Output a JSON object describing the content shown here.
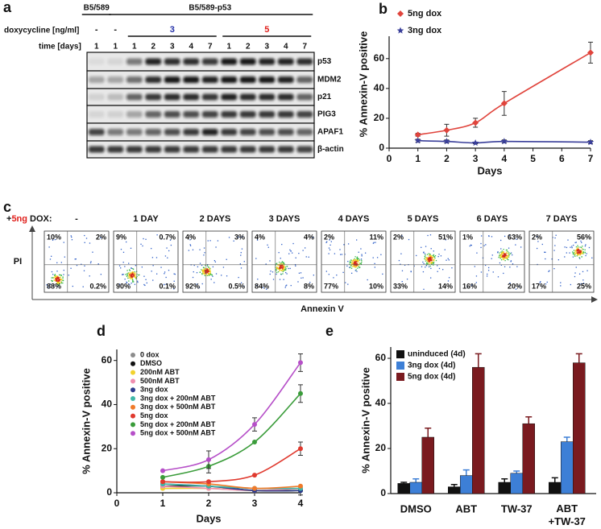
{
  "panel_a": {
    "label": "a",
    "group_labels": [
      "B5/589",
      "B5/589-p53"
    ],
    "dox_label": "doxycycline [ng/ml]",
    "dox_values": [
      "-",
      "-",
      "3",
      "5"
    ],
    "time_label": "time [days]",
    "time_values": [
      "1",
      "1",
      "1",
      "2",
      "3",
      "4",
      "7",
      "1",
      "2",
      "3",
      "4",
      "7"
    ],
    "proteins": [
      "p53",
      "MDM2",
      "p21",
      "PIG3",
      "APAF1",
      "β-actin"
    ]
  },
  "panel_c": {
    "label": "c",
    "prefix": [
      "+",
      "5ng",
      "DOX:"
    ],
    "ylabel": "PI",
    "xlabel": "Annexin V",
    "conditions": [
      {
        "title": "-",
        "quadrants": [
          "10%",
          "2%",
          "88%",
          "0.2%"
        ]
      },
      {
        "title": "1 DAY",
        "quadrants": [
          "9%",
          "0.7%",
          "90%",
          "0.1%"
        ]
      },
      {
        "title": "2 DAYS",
        "quadrants": [
          "4%",
          "3%",
          "92%",
          "0.5%"
        ]
      },
      {
        "title": "3 DAYS",
        "quadrants": [
          "4%",
          "4%",
          "84%",
          "8%"
        ]
      },
      {
        "title": "4 DAYS",
        "quadrants": [
          "2%",
          "11%",
          "77%",
          "10%"
        ]
      },
      {
        "title": "5 DAYS",
        "quadrants": [
          "2%",
          "51%",
          "33%",
          "14%"
        ]
      },
      {
        "title": "6 DAYS",
        "quadrants": [
          "1%",
          "63%",
          "16%",
          "20%"
        ]
      },
      {
        "title": "7 DAYS",
        "quadrants": [
          "2%",
          "56%",
          "17%",
          "25%"
        ]
      }
    ]
  },
  "chart_data": [
    {
      "type": "line",
      "panel_label": "b",
      "xlabel": "Days",
      "ylabel": "% Annexin-V positive",
      "x": [
        1,
        2,
        3,
        4,
        7
      ],
      "xlim": [
        0,
        7
      ],
      "xticks": [
        0,
        1,
        2,
        3,
        4,
        5,
        6,
        7
      ],
      "ylim": [
        0,
        75
      ],
      "yticks": [
        0,
        20,
        40,
        60
      ],
      "legend": "upper left",
      "smooth": true,
      "series": [
        {
          "name": "5ng dox",
          "color": "#e0443c",
          "marker": "diamond",
          "values": [
            9,
            12,
            17,
            30,
            64
          ],
          "errors": [
            1,
            4,
            3,
            8,
            7
          ]
        },
        {
          "name": "3ng dox",
          "color": "#3a3f9a",
          "marker": "star",
          "values": [
            5,
            4.5,
            3.5,
            4.5,
            4
          ],
          "errors": [
            1,
            1,
            0.5,
            1,
            1
          ]
        }
      ]
    },
    {
      "type": "line",
      "panel_label": "d",
      "xlabel": "Days",
      "ylabel": "% Annexin-V positive",
      "x": [
        1,
        2,
        3,
        4
      ],
      "xlim": [
        0,
        4
      ],
      "xticks": [
        0,
        1,
        2,
        3,
        4
      ],
      "ylim": [
        0,
        65
      ],
      "yticks": [
        0,
        20,
        40,
        60
      ],
      "legend": "upper left",
      "smooth": true,
      "series": [
        {
          "name": "0 dox",
          "color": "#8c8c8c",
          "marker": "circle",
          "values": [
            2,
            2,
            1,
            1
          ],
          "errors": [
            null,
            null,
            null,
            null
          ]
        },
        {
          "name": "DMSO",
          "color": "#111111",
          "marker": "circle",
          "values": [
            3,
            3,
            1,
            1
          ],
          "errors": [
            null,
            null,
            null,
            2
          ]
        },
        {
          "name": "200nM ABT",
          "color": "#f2d22e",
          "marker": "circle",
          "values": [
            2,
            2,
            1,
            2
          ],
          "errors": [
            null,
            null,
            null,
            null
          ]
        },
        {
          "name": "500nM ABT",
          "color": "#f08fb0",
          "marker": "circle",
          "values": [
            3,
            2,
            1,
            2
          ],
          "errors": [
            null,
            null,
            null,
            null
          ]
        },
        {
          "name": "3ng dox",
          "color": "#2d3c8e",
          "marker": "circle",
          "values": [
            4,
            3,
            1,
            1
          ],
          "errors": [
            null,
            null,
            null,
            null
          ]
        },
        {
          "name": "3ng dox + 200nM ABT",
          "color": "#3fb8a8",
          "marker": "circle",
          "values": [
            4,
            3,
            2,
            2
          ],
          "errors": [
            null,
            null,
            null,
            null
          ]
        },
        {
          "name": "3ng dox + 500nM ABT",
          "color": "#f07a2a",
          "marker": "circle",
          "values": [
            5,
            4,
            2,
            3
          ],
          "errors": [
            null,
            null,
            null,
            null
          ]
        },
        {
          "name": "5ng dox",
          "color": "#e03a2f",
          "marker": "circle",
          "values": [
            5,
            5,
            8,
            20
          ],
          "errors": [
            null,
            null,
            null,
            3
          ]
        },
        {
          "name": "5ng dox + 200nM ABT",
          "color": "#3a9c3a",
          "marker": "circle",
          "values": [
            7,
            12,
            23,
            45
          ],
          "errors": [
            null,
            3,
            null,
            4
          ]
        },
        {
          "name": "5ng dox + 500nM ABT",
          "color": "#b64fc8",
          "marker": "circle",
          "values": [
            10,
            15,
            31,
            59
          ],
          "errors": [
            null,
            4,
            3,
            4
          ]
        }
      ]
    },
    {
      "type": "bar",
      "panel_label": "e",
      "ylabel": "% Annexin-V positive",
      "categories": [
        "DMSO",
        "ABT",
        "TW-37",
        "ABT\n+TW-37"
      ],
      "ylim": [
        0,
        65
      ],
      "yticks": [
        0,
        20,
        40,
        60
      ],
      "legend": "upper left",
      "series": [
        {
          "name": "uninduced (4d)",
          "color": "#111111",
          "values": [
            4.5,
            3,
            5,
            5
          ],
          "errors": [
            0.5,
            1,
            1.5,
            2
          ]
        },
        {
          "name": "3ng dox (4d)",
          "color": "#3d7fd6",
          "values": [
            5,
            8,
            9,
            23
          ],
          "errors": [
            1.5,
            2.5,
            1,
            2
          ]
        },
        {
          "name": "5ng dox (4d)",
          "color": "#7a1a1f",
          "values": [
            25,
            56,
            31,
            58
          ],
          "errors": [
            4,
            6,
            3,
            4
          ]
        }
      ]
    }
  ]
}
